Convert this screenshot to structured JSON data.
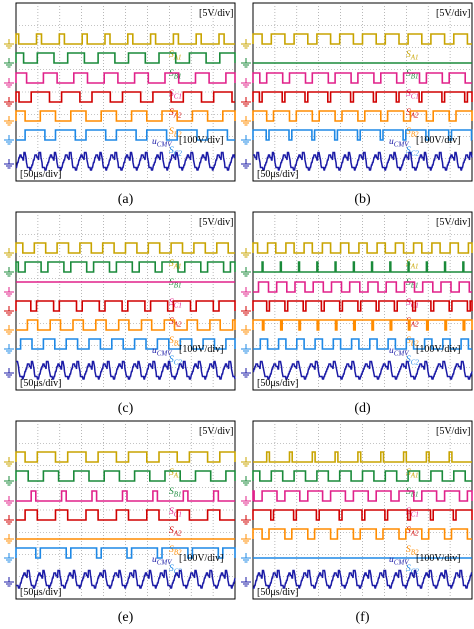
{
  "chart_data": [
    {
      "type": "line",
      "title": "",
      "caption": "(a)",
      "scale_v": "[5V/div]",
      "scale_cm": "[100V/div]",
      "scale_t": "[50μs/div]",
      "series": [
        {
          "name": "S_A1",
          "label_main": "S",
          "label_sub": "A1",
          "color": "#c8a400",
          "kind": "pulse",
          "period": 9.6,
          "duty": 0.22,
          "phase": 0.1
        },
        {
          "name": "S_B1",
          "label_main": "S",
          "label_sub": "B1",
          "color": "#1a8a3a",
          "kind": "pulse",
          "period": 7.2,
          "duty": 0.55,
          "phase": 0.3
        },
        {
          "name": "S_C1",
          "label_main": "S",
          "label_sub": "C1",
          "color": "#e0218a",
          "kind": "pulse",
          "period": 7.2,
          "duty": 0.45,
          "phase": 0.1
        },
        {
          "name": "S_A2",
          "label_main": "S",
          "label_sub": "A2",
          "color": "#d00000",
          "kind": "pulse",
          "period": 7.2,
          "duty": 0.6,
          "phase": 0.5
        },
        {
          "name": "S_B2",
          "label_main": "S",
          "label_sub": "B2",
          "color": "#ff8c00",
          "kind": "pulse",
          "period": 7.2,
          "duty": 0.5,
          "phase": 0.2
        },
        {
          "name": "S_C2",
          "label_main": "S",
          "label_sub": "C2",
          "color": "#1e88e5",
          "kind": "pulse",
          "period": 7.2,
          "duty": 0.65,
          "phase": 0.7
        },
        {
          "name": "u_CMV",
          "label_main": "u",
          "label_sub": "CMV",
          "color": "#1a1aa6",
          "kind": "cmv",
          "period": 14.4,
          "phase": 0
        }
      ]
    },
    {
      "type": "line",
      "title": "",
      "caption": "(b)",
      "scale_v": "[5V/div]",
      "scale_cm": "[100V/div]",
      "scale_t": "[50μs/div]",
      "series": [
        {
          "name": "S_A1",
          "label_main": "S",
          "label_sub": "A1",
          "color": "#c8a400",
          "kind": "pulse",
          "period": 9.6,
          "duty": 0.6,
          "phase": 0.2
        },
        {
          "name": "S_B1",
          "label_main": "S",
          "label_sub": "B1",
          "color": "#1a8a3a",
          "kind": "flat",
          "level": 0
        },
        {
          "name": "S_C1",
          "label_main": "S",
          "label_sub": "C1",
          "color": "#e0218a",
          "kind": "pulse",
          "period": 9.6,
          "duty": 0.7,
          "phase": 0.4
        },
        {
          "name": "S_A2",
          "label_main": "S",
          "label_sub": "A2",
          "color": "#d00000",
          "kind": "pulse",
          "period": 9.6,
          "duty": 0.88,
          "phase": 0.6
        },
        {
          "name": "S_B2",
          "label_main": "S",
          "label_sub": "B2",
          "color": "#ff8c00",
          "kind": "pulse",
          "period": 9.6,
          "duty": 0.7,
          "phase": 0.1
        },
        {
          "name": "S_C2",
          "label_main": "S",
          "label_sub": "C2",
          "color": "#1e88e5",
          "kind": "pulse",
          "period": 9.6,
          "duty": 0.88,
          "phase": 0.3
        },
        {
          "name": "u_CMV",
          "label_main": "u",
          "label_sub": "CMV",
          "color": "#1a1aa6",
          "kind": "cmv",
          "period": 14.4,
          "phase": 0.25
        }
      ]
    },
    {
      "type": "line",
      "title": "",
      "caption": "(c)",
      "scale_v": "[5V/div]",
      "scale_cm": "[100V/div]",
      "scale_t": "[50μs/div]",
      "series": [
        {
          "name": "S_A1",
          "label_main": "S",
          "label_sub": "A1",
          "color": "#c8a400",
          "kind": "pulse",
          "period": 9.6,
          "duty": 0.5,
          "phase": 0.2
        },
        {
          "name": "S_B1",
          "label_main": "S",
          "label_sub": "B1",
          "color": "#1a8a3a",
          "kind": "pulse",
          "period": 9.6,
          "duty": 0.7,
          "phase": 0.6
        },
        {
          "name": "S_C1",
          "label_main": "S",
          "label_sub": "C1",
          "color": "#e0218a",
          "kind": "flat",
          "level": 1
        },
        {
          "name": "S_A2",
          "label_main": "S",
          "label_sub": "A2",
          "color": "#d00000",
          "kind": "pulse",
          "period": 9.6,
          "duty": 0.75,
          "phase": 0.1
        },
        {
          "name": "S_B2",
          "label_main": "S",
          "label_sub": "B2",
          "color": "#ff8c00",
          "kind": "pulse",
          "period": 9.6,
          "duty": 0.45,
          "phase": 0.5
        },
        {
          "name": "S_C2",
          "label_main": "S",
          "label_sub": "C2",
          "color": "#1e88e5",
          "kind": "pulse",
          "period": 9.6,
          "duty": 0.5,
          "phase": 0.8
        },
        {
          "name": "u_CMV",
          "label_main": "u",
          "label_sub": "CMV",
          "color": "#1a1aa6",
          "kind": "cmv",
          "period": 14.4,
          "phase": 0.5
        }
      ]
    },
    {
      "type": "line",
      "title": "",
      "caption": "(d)",
      "scale_v": "[5V/div]",
      "scale_cm": "[100V/div]",
      "scale_t": "[50μs/div]",
      "series": [
        {
          "name": "S_A1",
          "label_main": "S",
          "label_sub": "A1",
          "color": "#c8a400",
          "kind": "pulse",
          "period": 12.0,
          "duty": 0.45,
          "phase": 0.2
        },
        {
          "name": "S_B1",
          "label_main": "S",
          "label_sub": "B1",
          "color": "#1a8a3a",
          "kind": "pulse",
          "period": 12.0,
          "duty": 0.05,
          "phase": 0.5
        },
        {
          "name": "S_C1",
          "label_main": "S",
          "label_sub": "C1",
          "color": "#e0218a",
          "kind": "pulse",
          "period": 12.0,
          "duty": 0.55,
          "phase": 0.7
        },
        {
          "name": "S_A2",
          "label_main": "S",
          "label_sub": "A2",
          "color": "#d00000",
          "kind": "pulse",
          "period": 12.0,
          "duty": 0.85,
          "phase": 0.1
        },
        {
          "name": "S_B2",
          "label_main": "S",
          "label_sub": "B2",
          "color": "#ff8c00",
          "kind": "pulse",
          "period": 12.0,
          "duty": 0.92,
          "phase": 0.4
        },
        {
          "name": "S_C2",
          "label_main": "S",
          "label_sub": "C2",
          "color": "#1e88e5",
          "kind": "pulse",
          "period": 12.0,
          "duty": 0.4,
          "phase": 0.6
        },
        {
          "name": "u_CMV",
          "label_main": "u",
          "label_sub": "CMV",
          "color": "#1a1aa6",
          "kind": "cmv",
          "period": 12.0,
          "phase": 0.1
        }
      ]
    },
    {
      "type": "line",
      "title": "",
      "caption": "(e)",
      "scale_v": "[5V/div]",
      "scale_cm": "[100V/div]",
      "scale_t": "[50μs/div]",
      "series": [
        {
          "name": "S_A1",
          "label_main": "S",
          "label_sub": "A1",
          "color": "#c8a400",
          "kind": "pulse",
          "period": 7.2,
          "duty": 0.6,
          "phase": 0.3
        },
        {
          "name": "S_B1",
          "label_main": "S",
          "label_sub": "B1",
          "color": "#1a8a3a",
          "kind": "pulse",
          "period": 7.2,
          "duty": 0.5,
          "phase": 0.1
        },
        {
          "name": "S_C1",
          "label_main": "S",
          "label_sub": "C1",
          "color": "#e0218a",
          "kind": "pulse",
          "period": 7.2,
          "duty": 0.15,
          "phase": 0.5
        },
        {
          "name": "S_A2",
          "label_main": "S",
          "label_sub": "A2",
          "color": "#d00000",
          "kind": "pulse",
          "period": 7.2,
          "duty": 0.4,
          "phase": 0.7
        },
        {
          "name": "S_B2",
          "label_main": "S",
          "label_sub": "B2",
          "color": "#ff8c00",
          "kind": "flat",
          "level": 0
        },
        {
          "name": "S_C2",
          "label_main": "S",
          "label_sub": "C2",
          "color": "#1e88e5",
          "kind": "pulse",
          "period": 7.2,
          "duty": 0.85,
          "phase": 0.2
        },
        {
          "name": "u_CMV",
          "label_main": "u",
          "label_sub": "CMV",
          "color": "#1a1aa6",
          "kind": "cmv",
          "period": 14.4,
          "phase": 0.75
        }
      ]
    },
    {
      "type": "line",
      "title": "",
      "caption": "(f)",
      "scale_v": "[5V/div]",
      "scale_cm": "[100V/div]",
      "scale_t": "[50μs/div]",
      "series": [
        {
          "name": "S_A1",
          "label_main": "S",
          "label_sub": "A1",
          "color": "#c8a400",
          "kind": "pulse",
          "period": 9.6,
          "duty": 0.12,
          "phase": 0.4
        },
        {
          "name": "S_B1",
          "label_main": "S",
          "label_sub": "B1",
          "color": "#1a8a3a",
          "kind": "pulse",
          "period": 9.6,
          "duty": 0.5,
          "phase": 0.2
        },
        {
          "name": "S_C1",
          "label_main": "S",
          "label_sub": "C1",
          "color": "#e0218a",
          "kind": "pulse",
          "period": 9.6,
          "duty": 0.65,
          "phase": 0.6
        },
        {
          "name": "S_A2",
          "label_main": "S",
          "label_sub": "A2",
          "color": "#d00000",
          "kind": "pulse",
          "period": 9.6,
          "duty": 0.88,
          "phase": 0.1
        },
        {
          "name": "S_B2",
          "label_main": "S",
          "label_sub": "B2",
          "color": "#ff8c00",
          "kind": "pulse",
          "period": 9.6,
          "duty": 0.7,
          "phase": 0.3
        },
        {
          "name": "S_C2",
          "label_main": "S",
          "label_sub": "C2",
          "color": "#1e88e5",
          "kind": "flat",
          "level": 0
        },
        {
          "name": "u_CMV",
          "label_main": "u",
          "label_sub": "CMV",
          "color": "#1a1aa6",
          "kind": "cmv",
          "period": 14.4,
          "phase": 0.9
        }
      ]
    }
  ],
  "colors": {
    "ground": "#2e7d32",
    "grid": "#8a8a8a",
    "frame": "#000000"
  }
}
